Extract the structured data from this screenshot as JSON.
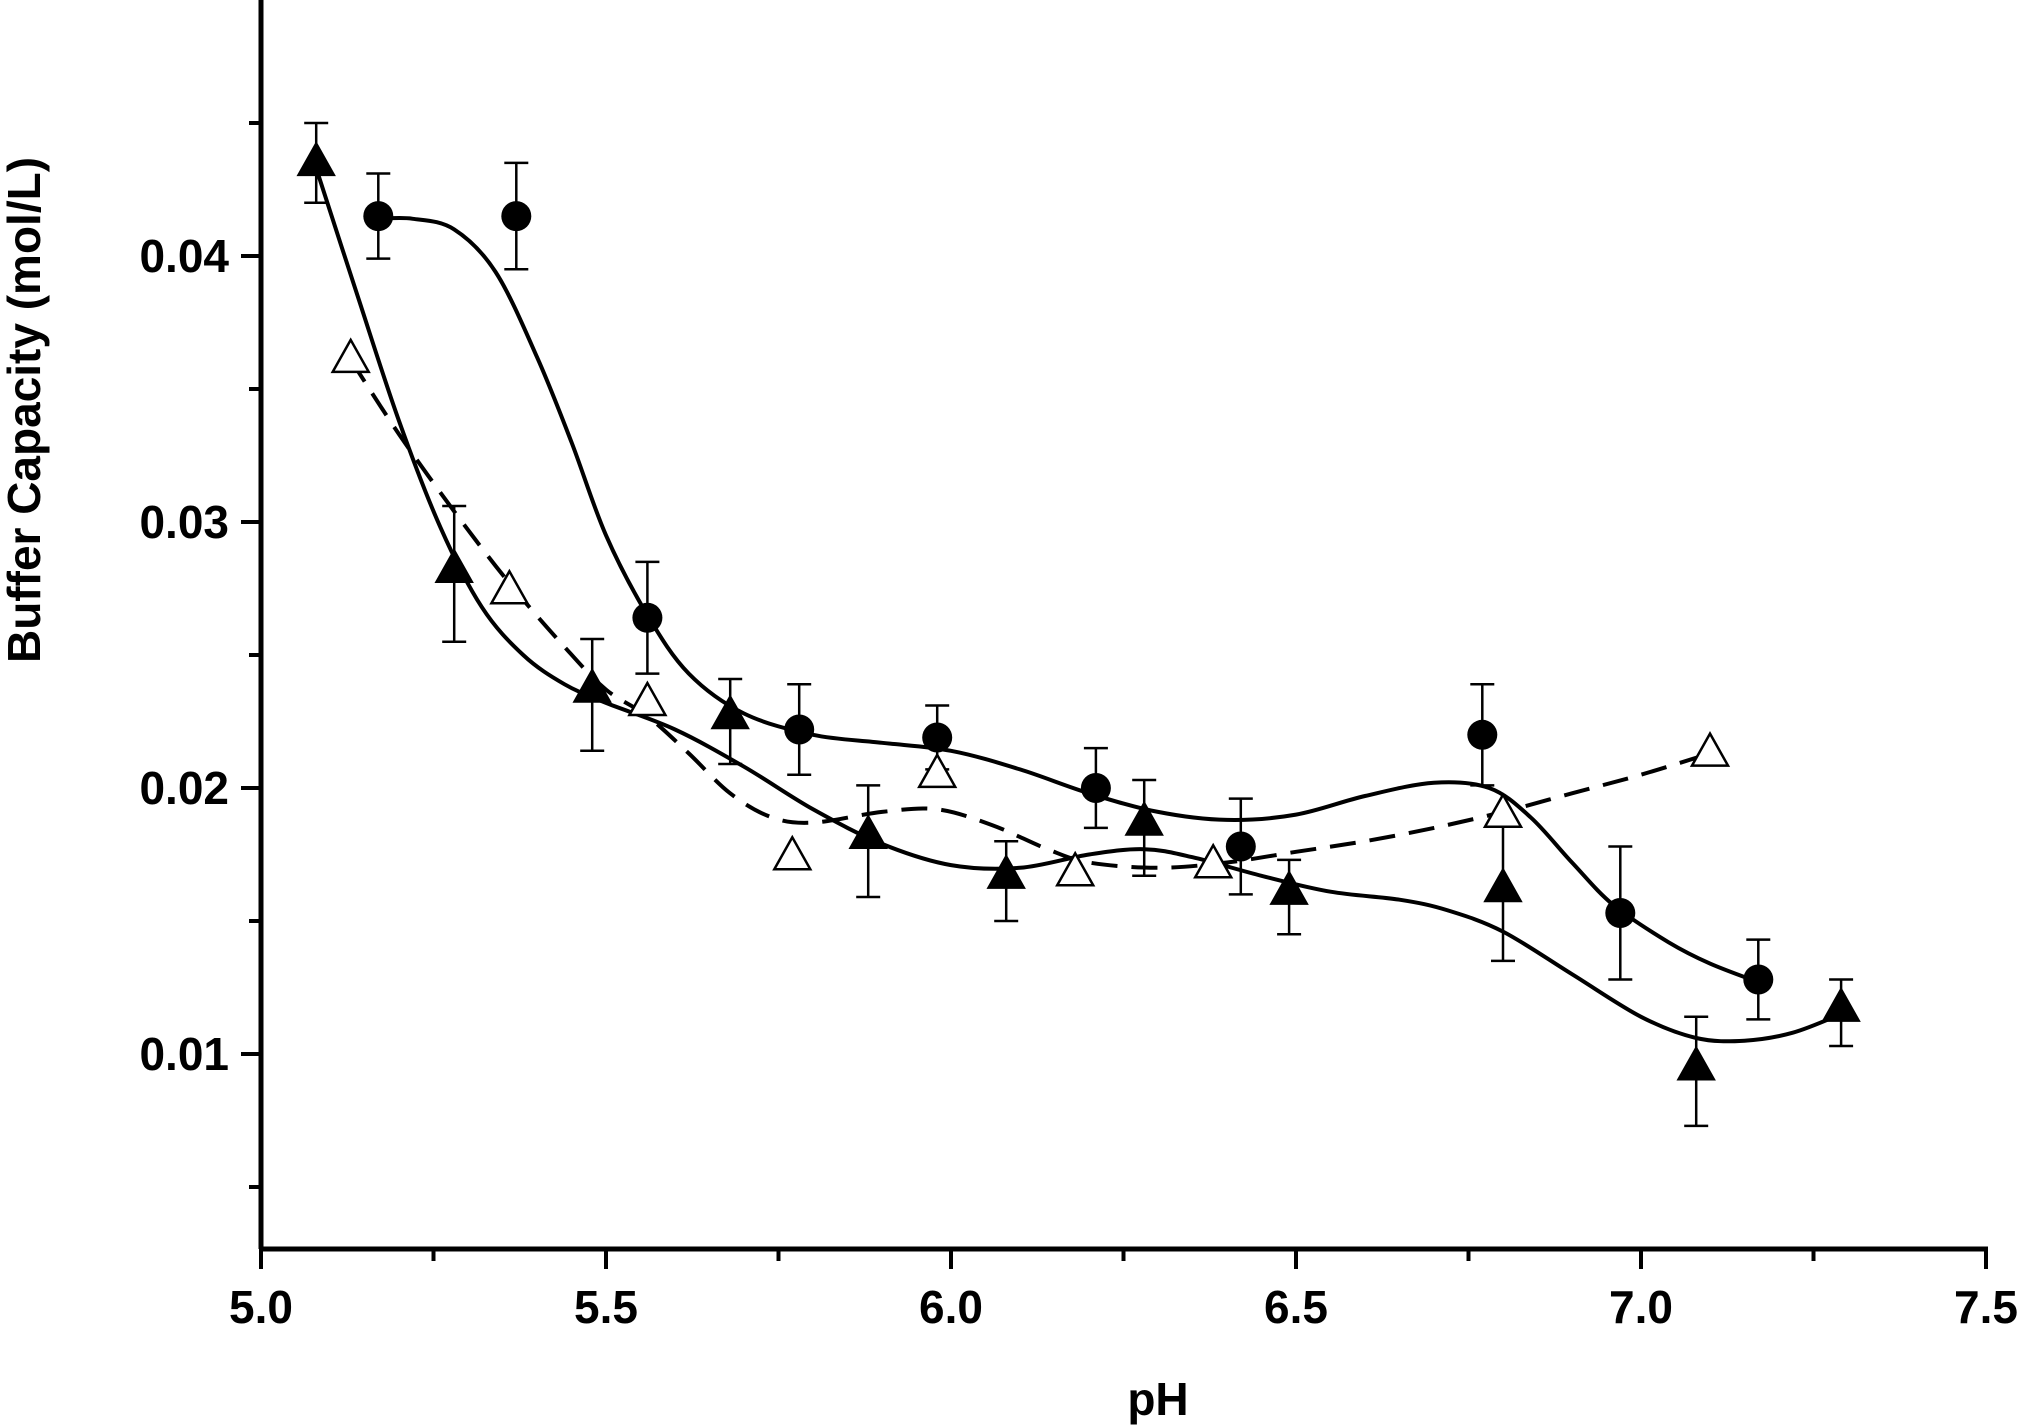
{
  "chart_data": {
    "type": "scatter",
    "title": "",
    "xlabel": "pH",
    "ylabel": "Buffer Capacity (mol/L)",
    "xlim": [
      5.0,
      7.5
    ],
    "ylim": [
      0.0025,
      0.0485
    ],
    "x_ticks": [
      5.0,
      5.5,
      6.0,
      6.5,
      7.0,
      7.5
    ],
    "x_tick_labels": [
      "5.0",
      "5.5",
      "6.0",
      "6.5",
      "7.0",
      "7.5"
    ],
    "x_minor_ticks": [
      5.25,
      5.75,
      6.25,
      6.75,
      7.25
    ],
    "y_ticks": [
      0.01,
      0.02,
      0.03,
      0.04
    ],
    "y_tick_labels": [
      "0.01",
      "0.02",
      "0.03",
      "0.04"
    ],
    "y_minor_ticks": [
      0.005,
      0.015,
      0.025,
      0.035,
      0.045
    ],
    "grid": false,
    "legend": false,
    "series": [
      {
        "marker": "filled-circle",
        "line": "solid",
        "x": [
          5.17,
          5.37,
          5.56,
          5.78,
          5.98,
          6.21,
          6.42,
          6.77,
          6.97,
          7.17
        ],
        "y": [
          0.0415,
          0.0415,
          0.0264,
          0.0222,
          0.0219,
          0.02,
          0.0178,
          0.022,
          0.0153,
          0.0128
        ],
        "err_upper": [
          0.0016,
          0.002,
          0.0021,
          0.0017,
          0.0012,
          0.0015,
          0.0018,
          0.0019,
          0.0025,
          0.0015
        ],
        "err_lower": [
          0.0016,
          0.002,
          0.0021,
          0.0017,
          0.0012,
          0.0015,
          0.0018,
          0.0019,
          0.0025,
          0.0015
        ],
        "fit_curve": [
          [
            5.17,
            0.0414
          ],
          [
            5.22,
            0.0414
          ],
          [
            5.28,
            0.041
          ],
          [
            5.34,
            0.0394
          ],
          [
            5.4,
            0.0362
          ],
          [
            5.45,
            0.033
          ],
          [
            5.5,
            0.0295
          ],
          [
            5.56,
            0.0265
          ],
          [
            5.62,
            0.0243
          ],
          [
            5.7,
            0.0228
          ],
          [
            5.8,
            0.022
          ],
          [
            5.9,
            0.0217
          ],
          [
            6.0,
            0.0214
          ],
          [
            6.1,
            0.0207
          ],
          [
            6.2,
            0.0198
          ],
          [
            6.3,
            0.0191
          ],
          [
            6.4,
            0.0188
          ],
          [
            6.5,
            0.019
          ],
          [
            6.6,
            0.0197
          ],
          [
            6.7,
            0.0202
          ],
          [
            6.78,
            0.02
          ],
          [
            6.84,
            0.0189
          ],
          [
            6.9,
            0.0172
          ],
          [
            6.96,
            0.0156
          ],
          [
            7.04,
            0.0142
          ],
          [
            7.1,
            0.0134
          ],
          [
            7.17,
            0.0127
          ]
        ]
      },
      {
        "marker": "filled-triangle",
        "line": "solid",
        "x": [
          5.08,
          5.28,
          5.48,
          5.68,
          5.88,
          6.08,
          6.28,
          6.49,
          6.8,
          7.08,
          7.29
        ],
        "y": [
          0.0435,
          0.0282,
          0.0237,
          0.0227,
          0.0182,
          0.0167,
          0.0187,
          0.0161,
          0.0162,
          0.0095,
          0.0117
        ],
        "err_upper": [
          0.0015,
          0.0024,
          0.0019,
          0.0014,
          0.0019,
          0.0013,
          0.0016,
          0.0012,
          0.0024,
          0.0019,
          0.0011
        ],
        "err_lower": [
          0.0015,
          0.0027,
          0.0023,
          0.0018,
          0.0023,
          0.0017,
          0.002,
          0.0016,
          0.0027,
          0.0022,
          0.0014
        ],
        "fit_curve": [
          [
            5.08,
            0.0433
          ],
          [
            5.14,
            0.0385
          ],
          [
            5.2,
            0.0338
          ],
          [
            5.26,
            0.0298
          ],
          [
            5.32,
            0.0268
          ],
          [
            5.38,
            0.025
          ],
          [
            5.44,
            0.0239
          ],
          [
            5.5,
            0.0232
          ],
          [
            5.6,
            0.0222
          ],
          [
            5.7,
            0.0208
          ],
          [
            5.8,
            0.0192
          ],
          [
            5.9,
            0.0179
          ],
          [
            6.0,
            0.0171
          ],
          [
            6.1,
            0.017
          ],
          [
            6.2,
            0.0175
          ],
          [
            6.28,
            0.0177
          ],
          [
            6.35,
            0.0174
          ],
          [
            6.45,
            0.0167
          ],
          [
            6.55,
            0.0161
          ],
          [
            6.65,
            0.0158
          ],
          [
            6.72,
            0.0154
          ],
          [
            6.8,
            0.0146
          ],
          [
            6.9,
            0.013
          ],
          [
            7.0,
            0.0114
          ],
          [
            7.08,
            0.0106
          ],
          [
            7.15,
            0.0105
          ],
          [
            7.22,
            0.0108
          ],
          [
            7.29,
            0.0115
          ]
        ]
      },
      {
        "marker": "open-triangle",
        "line": "dashed",
        "x": [
          5.13,
          5.36,
          5.56,
          5.77,
          5.98,
          6.18,
          6.38,
          6.8,
          7.1
        ],
        "y": [
          0.0361,
          0.0274,
          0.0232,
          0.0174,
          0.0205,
          0.0168,
          0.0171,
          0.019,
          0.0213
        ],
        "fit_curve": [
          [
            5.13,
            0.0361
          ],
          [
            5.2,
            0.0333
          ],
          [
            5.28,
            0.0304
          ],
          [
            5.36,
            0.0277
          ],
          [
            5.44,
            0.0253
          ],
          [
            5.5,
            0.0237
          ],
          [
            5.56,
            0.0227
          ],
          [
            5.62,
            0.0213
          ],
          [
            5.68,
            0.0198
          ],
          [
            5.74,
            0.0189
          ],
          [
            5.8,
            0.0187
          ],
          [
            5.9,
            0.0191
          ],
          [
            5.98,
            0.0192
          ],
          [
            6.06,
            0.0186
          ],
          [
            6.14,
            0.0177
          ],
          [
            6.2,
            0.0172
          ],
          [
            6.3,
            0.017
          ],
          [
            6.4,
            0.0172
          ],
          [
            6.5,
            0.0176
          ],
          [
            6.6,
            0.018
          ],
          [
            6.7,
            0.0185
          ],
          [
            6.8,
            0.0191
          ],
          [
            6.9,
            0.0198
          ],
          [
            7.0,
            0.0205
          ],
          [
            7.1,
            0.0213
          ]
        ]
      }
    ]
  }
}
